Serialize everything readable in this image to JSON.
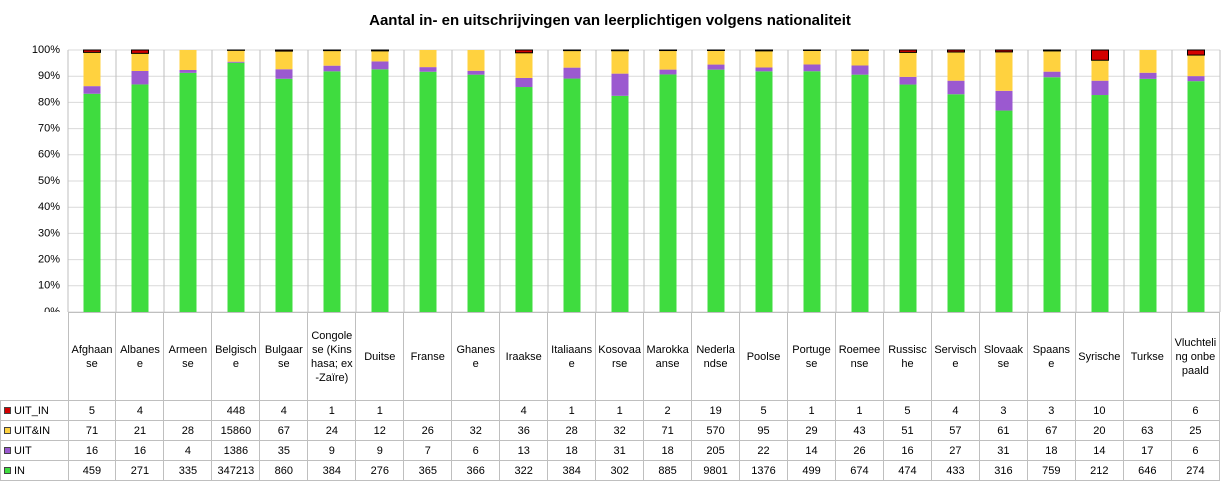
{
  "chart_data": {
    "type": "stacked_percent_bar",
    "title": "Aantal in- en uitschrijvingen van leerplichtigen volgens nationaliteit",
    "categories": [
      "Afghaanse",
      "Albanese",
      "Armeense",
      "Belgische",
      "Bulgaarse",
      "Congolese (Kinshasa; ex-Zaïre)",
      "Duitse",
      "Franse",
      "Ghanese",
      "Iraakse",
      "Italiaanse",
      "Kosovaarse",
      "Marokkaanse",
      "Nederlandse",
      "Poolse",
      "Portugese",
      "Roemeense",
      "Russische",
      "Servische",
      "Slovaakse",
      "Spaanse",
      "Syrische",
      "Turkse",
      "Vluchteling onbepaald"
    ],
    "series": [
      {
        "name": "IN",
        "color": "#3fdc3f",
        "values": [
          459,
          271,
          335,
          347213,
          860,
          384,
          276,
          365,
          366,
          322,
          384,
          302,
          885,
          9801,
          1376,
          499,
          674,
          474,
          433,
          316,
          759,
          212,
          646,
          274
        ]
      },
      {
        "name": "UIT",
        "color": "#9b59d0",
        "values": [
          16,
          16,
          4,
          1386,
          35,
          9,
          9,
          7,
          6,
          13,
          18,
          31,
          18,
          205,
          22,
          14,
          26,
          16,
          27,
          31,
          18,
          14,
          17,
          6
        ]
      },
      {
        "name": "UIT&IN",
        "color": "#ffd23f",
        "values": [
          71,
          21,
          28,
          15860,
          67,
          24,
          12,
          26,
          32,
          36,
          28,
          32,
          71,
          570,
          95,
          29,
          43,
          51,
          57,
          61,
          67,
          20,
          63,
          25
        ]
      },
      {
        "name": "UIT_IN",
        "color": "#d40000",
        "values": [
          5,
          4,
          null,
          448,
          4,
          1,
          1,
          null,
          null,
          4,
          1,
          1,
          2,
          19,
          5,
          1,
          1,
          5,
          4,
          3,
          3,
          10,
          null,
          6
        ]
      }
    ],
    "ylim": [
      0,
      100
    ],
    "yticks": [
      {
        "value": 0,
        "label": "0%"
      },
      {
        "value": 10,
        "label": "10%"
      },
      {
        "value": 20,
        "label": "20%"
      },
      {
        "value": 30,
        "label": "30%"
      },
      {
        "value": 40,
        "label": "40%"
      },
      {
        "value": 50,
        "label": "50%"
      },
      {
        "value": 60,
        "label": "60%"
      },
      {
        "value": 70,
        "label": "70%"
      },
      {
        "value": 80,
        "label": "80%"
      },
      {
        "value": 90,
        "label": "90%"
      },
      {
        "value": 100,
        "label": "100%"
      }
    ],
    "grid": true
  }
}
